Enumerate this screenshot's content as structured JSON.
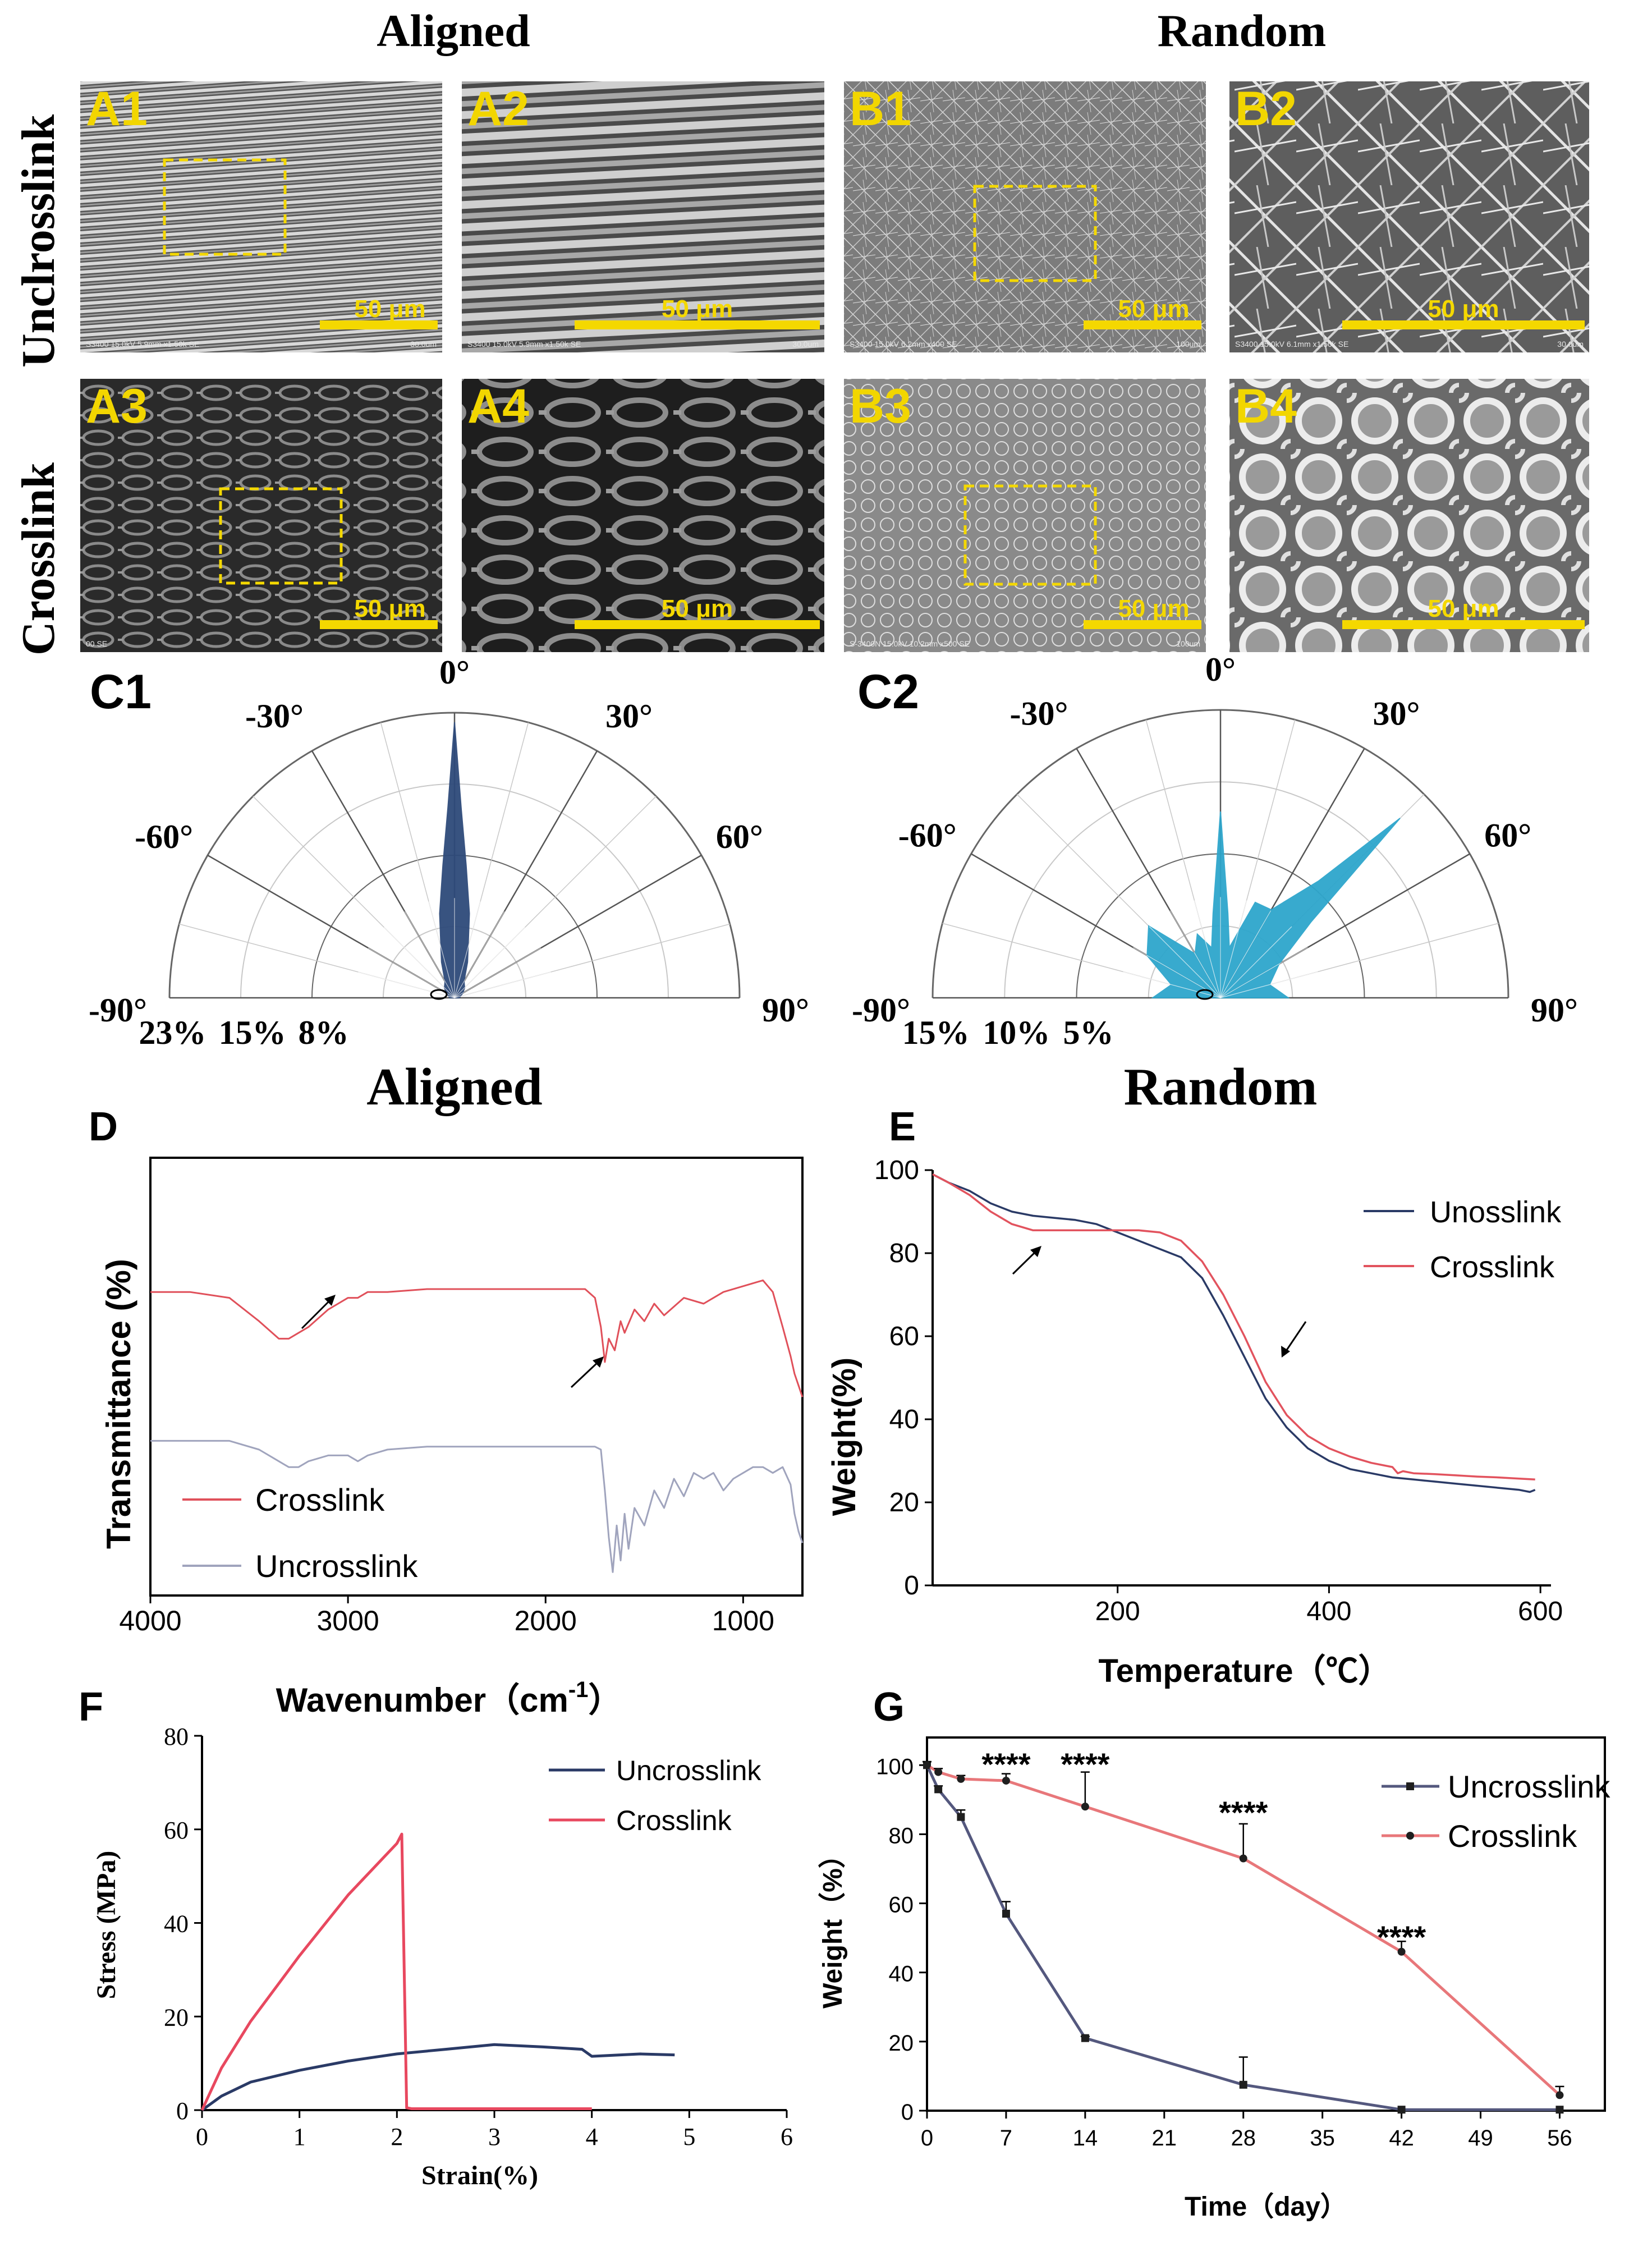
{
  "sem": {
    "column_headers": [
      "Aligned",
      "Random"
    ],
    "row_labels": [
      "Unclrosslink",
      "Crosslink"
    ],
    "panels": [
      {
        "id": "A1",
        "scale": "50 μm",
        "caption": "S3400 15.0kV 5.9mm x1.50k SE",
        "scale_caption": "30.0um"
      },
      {
        "id": "A2",
        "scale": "50 μm",
        "caption": "S3400 15.0kV 5.9mm x1.50k SE",
        "scale_caption": "30.0um"
      },
      {
        "id": "B1",
        "scale": "50 μm",
        "caption": "S3400 15.0kV 6.2mm x400 SE",
        "scale_caption": "100um"
      },
      {
        "id": "B2",
        "scale": "50 μm",
        "caption": "S3400 15.0kV 6.1mm x1.50k SE",
        "scale_caption": "30.0um"
      },
      {
        "id": "A3",
        "scale": "50 μm",
        "caption": "00 SE",
        "scale_caption": ""
      },
      {
        "id": "A4",
        "scale": "50 μm",
        "caption": "",
        "scale_caption": ""
      },
      {
        "id": "B3",
        "scale": "50 μm",
        "caption": "S-3400N 15.0kV 10.2mm x500 SE",
        "scale_caption": "100um"
      },
      {
        "id": "B4",
        "scale": "50 μm",
        "caption": "",
        "scale_caption": ""
      }
    ]
  },
  "polar": [
    {
      "id": "C1",
      "title": "Aligned",
      "angle_labels": [
        "-90°",
        "-60°",
        "-30°",
        "0°",
        "30°",
        "60°",
        "90°"
      ],
      "ring_labels": [
        "23%",
        "15%",
        "8%"
      ],
      "color": "#2e4a7a",
      "chart_data": {
        "type": "polar-rose",
        "angles_deg": [
          -90,
          -60,
          -45,
          -30,
          -20,
          -10,
          -5,
          -2,
          0,
          2,
          5,
          10,
          20,
          30,
          45,
          60,
          90
        ],
        "values_pct": [
          0.5,
          1,
          1.5,
          2,
          4,
          9,
          14,
          20,
          29,
          20,
          14,
          9,
          4,
          2,
          1.5,
          1,
          0.5
        ],
        "rmax_pct": 30
      }
    },
    {
      "id": "C2",
      "title": "Random",
      "angle_labels": [
        "-90°",
        "-60°",
        "-30°",
        "0°",
        "30°",
        "60°",
        "90°"
      ],
      "ring_labels": [
        "15%",
        "10%",
        "5%"
      ],
      "color": "#2ea6cc",
      "chart_data": {
        "type": "polar-rose",
        "angles_deg": [
          -90,
          -75,
          -60,
          -45,
          -30,
          -20,
          -10,
          -5,
          0,
          5,
          10,
          20,
          30,
          40,
          45,
          50,
          60,
          75,
          90
        ],
        "values_pct": [
          4,
          3,
          5,
          6,
          3,
          4,
          3,
          5,
          11,
          5,
          3,
          6,
          6,
          9,
          15,
          7,
          4,
          3,
          4
        ],
        "rmax_pct": 17
      }
    }
  ],
  "panel_letters": {
    "D": "D",
    "E": "E",
    "F": "F",
    "G": "G"
  },
  "ftir": {
    "chart_data": {
      "type": "line",
      "xlabel": "Wavenumber（cm",
      "xlabel_sup": "-1",
      "xlabel_end": "）",
      "ylabel": "Transmittance (%)",
      "xlim": [
        4000,
        700
      ],
      "x_ticks": [
        "4000",
        "3000",
        "2000",
        "1000"
      ],
      "x_tick_values": [
        4000,
        3000,
        2000,
        1000
      ],
      "series": [
        {
          "name": "Crosslink",
          "color": "#e0505a",
          "x": [
            4000,
            3800,
            3600,
            3450,
            3350,
            3300,
            3200,
            3100,
            3050,
            3000,
            2950,
            2900,
            2800,
            2600,
            2400,
            2200,
            2000,
            1800,
            1750,
            1720,
            1700,
            1680,
            1650,
            1620,
            1600,
            1550,
            1500,
            1450,
            1400,
            1300,
            1200,
            1100,
            1000,
            900,
            850,
            800,
            760,
            740,
            720,
            700
          ],
          "y": [
            52,
            52,
            51,
            47,
            44,
            44,
            46,
            49,
            50,
            51,
            51,
            52,
            52,
            52.5,
            52.5,
            52.5,
            52.5,
            52.5,
            51,
            46,
            40,
            44,
            42,
            47,
            45,
            49,
            47,
            50,
            48,
            51,
            50,
            52,
            53,
            54,
            52,
            46,
            41,
            38,
            36,
            34
          ]
        },
        {
          "name": "Uncrosslink",
          "color": "#a0a4bd",
          "x": [
            4000,
            3800,
            3600,
            3450,
            3350,
            3300,
            3250,
            3200,
            3100,
            3000,
            2950,
            2900,
            2850,
            2800,
            2600,
            2400,
            2200,
            2000,
            1800,
            1750,
            1720,
            1700,
            1680,
            1660,
            1640,
            1620,
            1600,
            1580,
            1550,
            1500,
            1450,
            1400,
            1350,
            1300,
            1250,
            1200,
            1150,
            1100,
            1050,
            1000,
            950,
            900,
            850,
            800,
            760,
            740,
            720,
            700
          ],
          "y": [
            26.5,
            26.5,
            26.5,
            25,
            23,
            22,
            22,
            23,
            24,
            24,
            23,
            24,
            24.5,
            25,
            25.5,
            25.5,
            25.5,
            25.5,
            25.5,
            25.5,
            25,
            18,
            10,
            4,
            12,
            6,
            14,
            8,
            15,
            12,
            18,
            15,
            20,
            17,
            21,
            20,
            21,
            18,
            20,
            21,
            22,
            22,
            21,
            22,
            19,
            14,
            11,
            9
          ]
        }
      ]
    }
  },
  "tga": {
    "chart_data": {
      "type": "line",
      "xlabel": "Temperature（℃）",
      "ylabel": "Weight(%)",
      "xlim": [
        25,
        610
      ],
      "ylim": [
        0,
        100
      ],
      "x_ticks": [
        "200",
        "400",
        "600"
      ],
      "x_tick_values": [
        200,
        400,
        600
      ],
      "y_ticks": [
        "0",
        "20",
        "40",
        "60",
        "80",
        "100"
      ],
      "y_tick_values": [
        0,
        20,
        40,
        60,
        80,
        100
      ],
      "series": [
        {
          "name": "Unosslink",
          "color": "#2a3a66",
          "x": [
            25,
            40,
            60,
            80,
            100,
            120,
            140,
            160,
            180,
            200,
            220,
            240,
            260,
            280,
            300,
            320,
            340,
            360,
            380,
            400,
            420,
            440,
            460,
            480,
            500,
            520,
            540,
            560,
            580,
            590,
            595
          ],
          "y": [
            99,
            97,
            95,
            92,
            90,
            89,
            88.5,
            88,
            87,
            85,
            83,
            81,
            79,
            74,
            65,
            55,
            45,
            38,
            33,
            30,
            28,
            27,
            26,
            25.5,
            25,
            24.5,
            24,
            23.5,
            23,
            22.5,
            23
          ]
        },
        {
          "name": "Crosslink",
          "color": "#e2535e",
          "x": [
            25,
            40,
            60,
            80,
            100,
            120,
            140,
            160,
            180,
            200,
            220,
            240,
            260,
            280,
            300,
            320,
            340,
            360,
            380,
            400,
            420,
            440,
            460,
            465,
            470,
            480,
            500,
            520,
            540,
            560,
            580,
            595
          ],
          "y": [
            99,
            97,
            94,
            90,
            87,
            85.5,
            85.5,
            85.5,
            85.5,
            85.5,
            85.5,
            85,
            83,
            78,
            70,
            60,
            49,
            41,
            36,
            33,
            31,
            29.5,
            28.5,
            27,
            27.5,
            27,
            26.8,
            26.5,
            26.2,
            26,
            25.7,
            25.5
          ]
        }
      ]
    }
  },
  "tensile": {
    "chart_data": {
      "type": "line",
      "xlabel": "Strain(%)",
      "ylabel": "Stress (MPa)",
      "xlim": [
        0,
        6
      ],
      "ylim": [
        0,
        80
      ],
      "x_ticks": [
        "0",
        "1",
        "2",
        "3",
        "4",
        "5",
        "6"
      ],
      "x_tick_values": [
        0,
        1,
        2,
        3,
        4,
        5,
        6
      ],
      "y_ticks": [
        "0",
        "20",
        "40",
        "60",
        "80"
      ],
      "y_tick_values": [
        0,
        20,
        40,
        60,
        80
      ],
      "series": [
        {
          "name": "Uncrosslink",
          "color": "#2a3a66",
          "x": [
            0,
            0.2,
            0.5,
            1,
            1.5,
            2,
            2.5,
            3,
            3.5,
            3.9,
            4,
            4.5,
            4.85
          ],
          "y": [
            0,
            3,
            6,
            8.5,
            10.5,
            12,
            13,
            14,
            13.5,
            13,
            11.5,
            12,
            11.8
          ]
        },
        {
          "name": "Crosslink",
          "color": "#e8485f",
          "x": [
            0,
            0.2,
            0.5,
            1,
            1.5,
            2,
            2.05,
            2.1,
            2.15,
            2.5,
            3,
            3.5,
            4
          ],
          "y": [
            0,
            9,
            19,
            33,
            46,
            57,
            59,
            0.5,
            0.3,
            0.3,
            0.3,
            0.3,
            0.3
          ]
        }
      ]
    }
  },
  "degradation": {
    "chart_data": {
      "type": "line",
      "xlabel": "Time（day）",
      "ylabel": "Weight（%）",
      "xlim": [
        0,
        60
      ],
      "ylim": [
        0,
        108
      ],
      "x_ticks": [
        "0",
        "7",
        "14",
        "21",
        "28",
        "35",
        "42",
        "49",
        "56"
      ],
      "x_tick_values": [
        0,
        7,
        14,
        21,
        28,
        35,
        42,
        49,
        56
      ],
      "y_ticks": [
        "0",
        "20",
        "40",
        "60",
        "80",
        "100"
      ],
      "y_tick_values": [
        0,
        20,
        40,
        60,
        80,
        100
      ],
      "significance": [
        {
          "x": 7,
          "label": "****",
          "y_level": 102
        },
        {
          "x": 14,
          "label": "****",
          "y_level": 102
        },
        {
          "x": 28,
          "label": "****",
          "y_level": 88
        },
        {
          "x": 42,
          "label": "****",
          "y_level": 52
        }
      ],
      "series": [
        {
          "name": "Uncrosslink",
          "color": "#54587e",
          "marker": "square",
          "x": [
            0,
            1,
            3,
            7,
            14,
            28,
            42,
            56
          ],
          "y": [
            100,
            93,
            85,
            57,
            21,
            7.5,
            0.3,
            0.3
          ],
          "err": [
            1,
            1,
            2,
            3.5,
            0.5,
            8,
            0,
            0
          ]
        },
        {
          "name": "Crosslink",
          "color": "#e8777a",
          "marker": "circle",
          "x": [
            0,
            1,
            3,
            7,
            14,
            28,
            42,
            56
          ],
          "y": [
            100,
            98,
            96,
            95.5,
            88,
            73,
            46,
            4.5
          ],
          "err": [
            1,
            1,
            1,
            2,
            10,
            10,
            3,
            2.5
          ]
        }
      ]
    }
  }
}
